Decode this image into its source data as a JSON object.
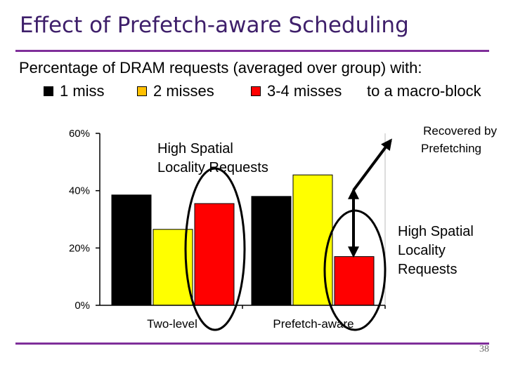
{
  "slide": {
    "title": "Effect of Prefetch-aware Scheduling",
    "subtitle": "Percentage of DRAM requests (averaged over group) with:",
    "page_number": "38",
    "colors": {
      "title": "#3e1f6a",
      "rule": "#7f2f9a"
    }
  },
  "legend": {
    "items": [
      {
        "label": "1 miss",
        "color": "#000000"
      },
      {
        "label": "2 misses",
        "color": "#ffc000"
      },
      {
        "label": "3-4 misses",
        "color": "#ff0000"
      }
    ],
    "note": "to a macro-block"
  },
  "annotations": {
    "left_label_line1": "High Spatial",
    "left_label_line2": "Locality Requests",
    "recovered_line1": "Recovered by",
    "recovered_line2": "Prefetching",
    "right_label_line1": "High Spatial",
    "right_label_line2": "Locality",
    "right_label_line3": "Requests"
  },
  "chart_data": {
    "type": "bar",
    "title": "",
    "xlabel": "",
    "ylabel": "",
    "categories": [
      "Two-level",
      "Prefetch-aware"
    ],
    "series": [
      {
        "name": "1 miss",
        "color": "#000000",
        "values": [
          38.5,
          38
        ]
      },
      {
        "name": "2 misses",
        "color": "#ffff00",
        "values": [
          26.5,
          45.5
        ]
      },
      {
        "name": "3-4 misses",
        "color": "#ff0000",
        "values": [
          35.5,
          17
        ]
      }
    ],
    "ylim": [
      0,
      60
    ],
    "yticks": [
      0,
      20,
      40,
      60
    ],
    "ytick_labels": [
      "0%",
      "20%",
      "40%",
      "60%"
    ],
    "grid": false
  }
}
